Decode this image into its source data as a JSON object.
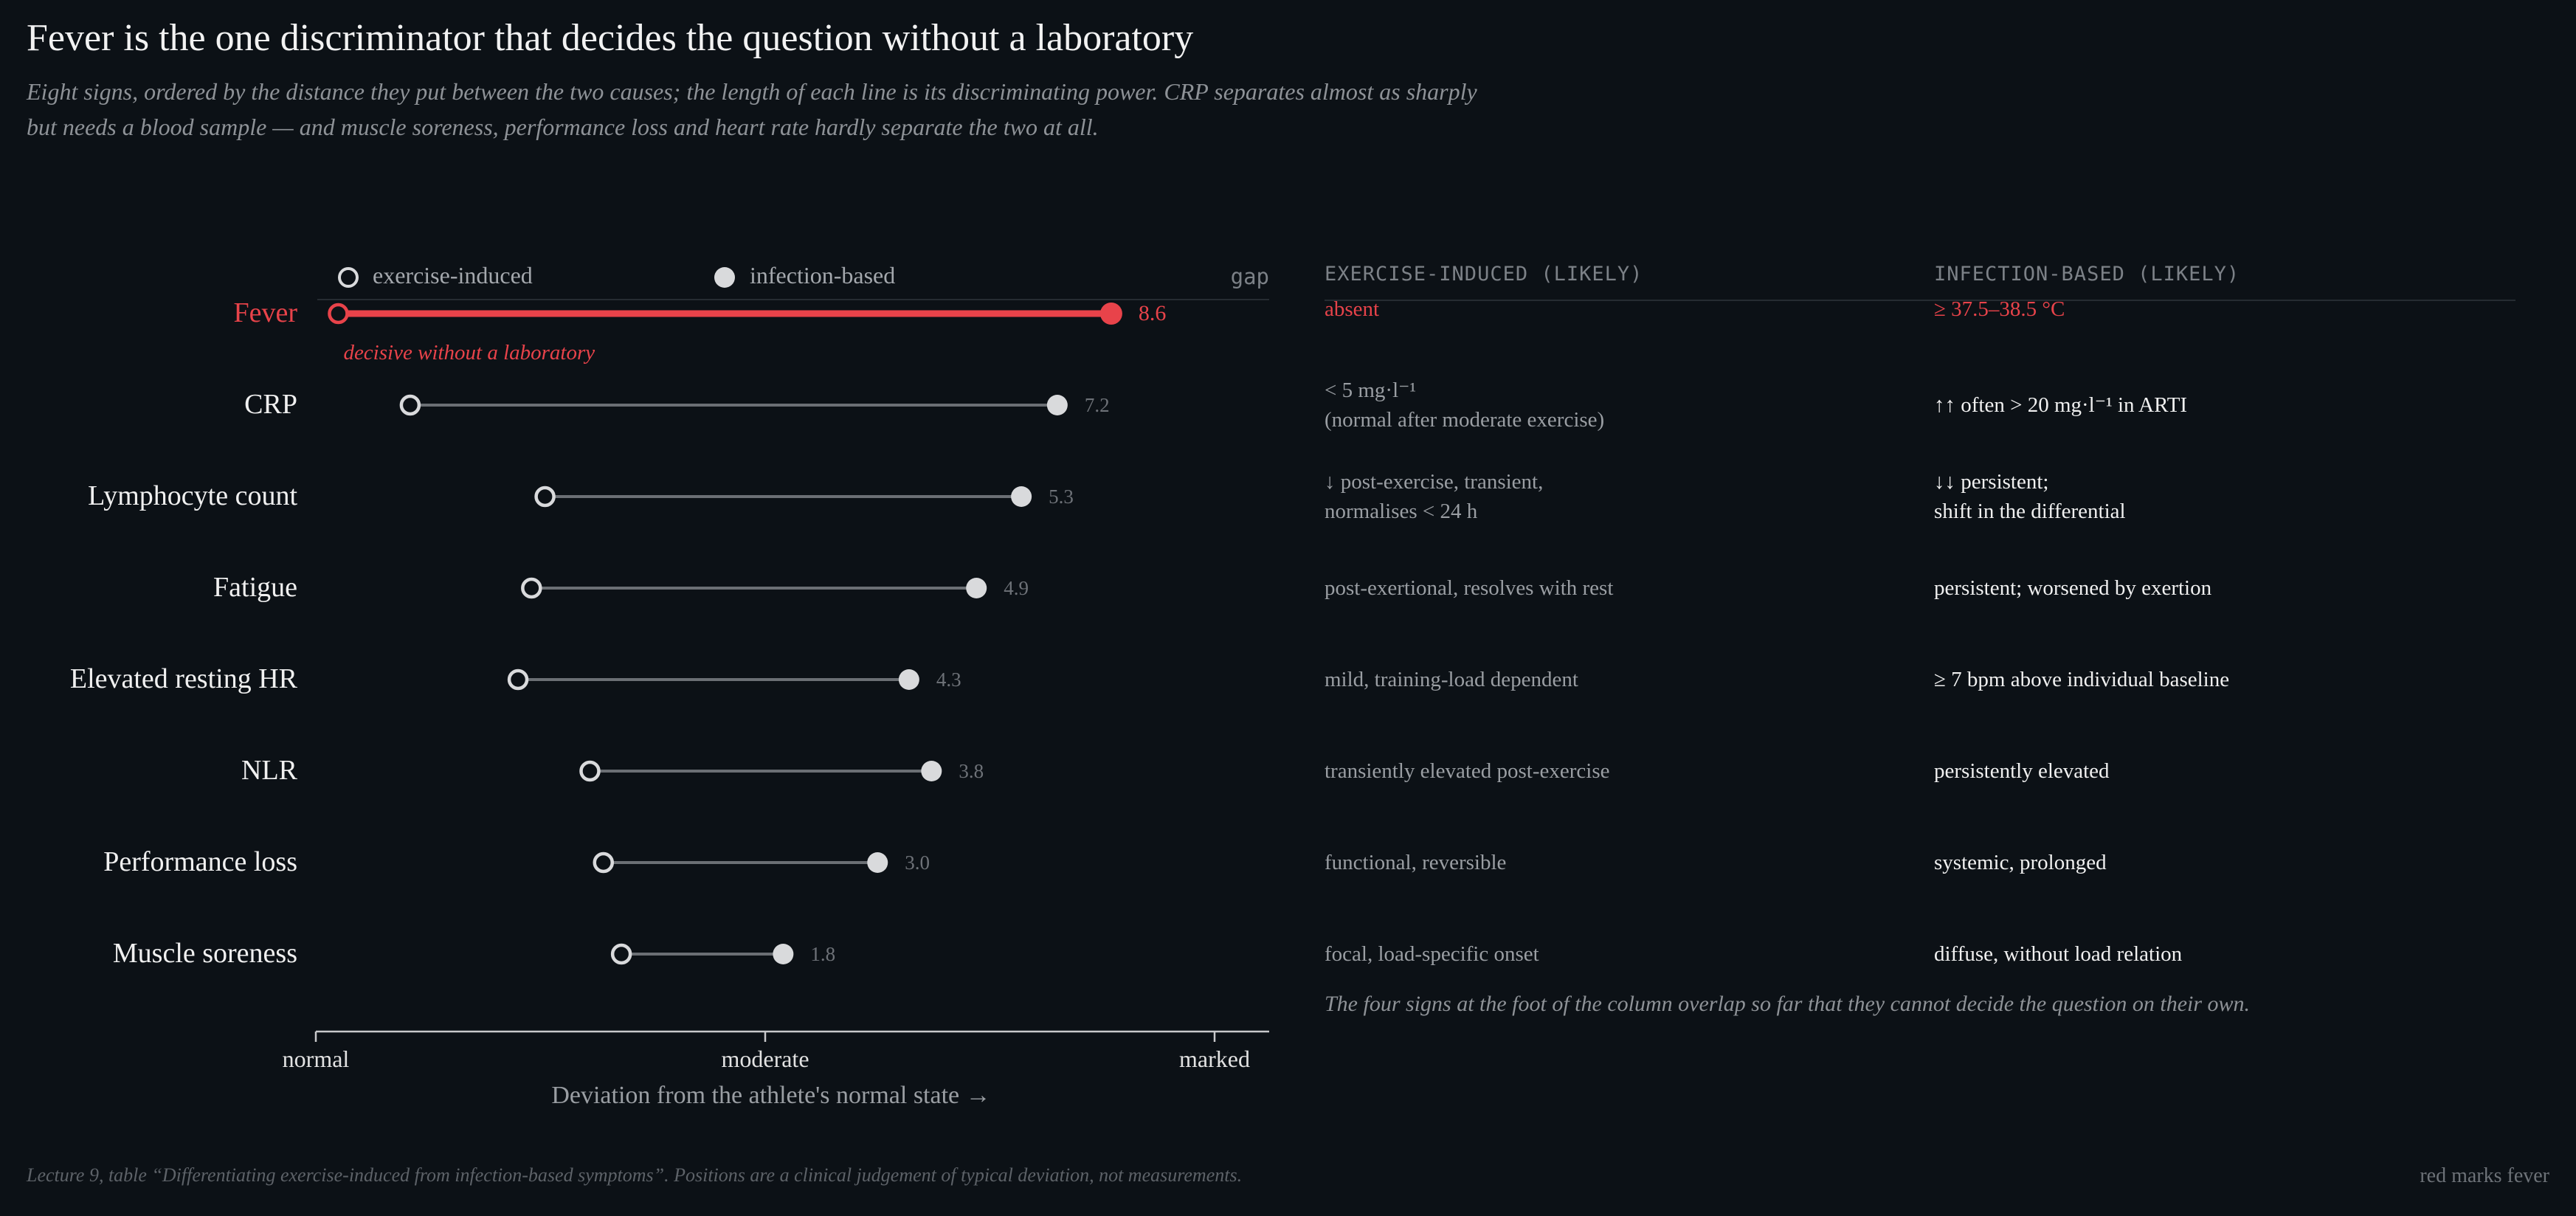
{
  "header": {
    "title": "Fever is the one discriminator that decides the question without a laboratory",
    "subtitle_line1": "Eight signs, ordered by the distance they put between the two causes; the length of each line is its discriminating power. CRP separates almost as sharply",
    "subtitle_line2": "but needs a blood sample — and muscle soreness, performance loss and heart rate hardly separate the two at all."
  },
  "legend": {
    "exercise": "exercise-induced",
    "infection": "infection-based",
    "gap_label": "gap"
  },
  "table": {
    "col_exercise": "EXERCISE-INDUCED (LIKELY)",
    "col_infection": "INFECTION-BASED (LIKELY)",
    "rows": [
      {
        "exercise": [
          "absent"
        ],
        "infection": [
          "≥ 37.5–38.5 °C"
        ],
        "highlight": true
      },
      {
        "exercise": [
          "< 5 mg·l⁻¹",
          "(normal after moderate exercise)"
        ],
        "infection": [
          "↑↑ often > 20 mg·l⁻¹ in ARTI"
        ]
      },
      {
        "exercise": [
          "↓ post-exercise, transient,",
          "normalises < 24 h"
        ],
        "infection": [
          "↓↓ persistent;",
          "shift in the differential"
        ]
      },
      {
        "exercise": [
          "post-exertional, resolves with rest"
        ],
        "infection": [
          "persistent; worsened by exertion"
        ]
      },
      {
        "exercise": [
          "mild, training-load dependent"
        ],
        "infection": [
          "≥ 7 bpm above individual baseline"
        ]
      },
      {
        "exercise": [
          "transiently elevated post-exercise"
        ],
        "infection": [
          "persistently elevated"
        ]
      },
      {
        "exercise": [
          "functional, reversible"
        ],
        "infection": [
          "systemic, prolonged"
        ]
      },
      {
        "exercise": [
          "focal, load-specific onset"
        ],
        "infection": [
          "diffuse, without load relation"
        ]
      }
    ],
    "note": "The four signs at the foot of the column overlap so far that they cannot decide the question on their own."
  },
  "footer": {
    "source": "Lecture 9, table “Differentiating exercise-induced from infection-based symptoms”. Positions are a clinical judgement of typical deviation, not measurements.",
    "corner": "red marks fever"
  },
  "colors": {
    "background": "#0c1116",
    "highlight": "#e8434a",
    "neutral_line": "#6b6f74",
    "dot_fill": "#d9dadc",
    "muted_text": "#7c8187"
  },
  "chart_data": {
    "type": "dumbbell",
    "title": "Fever is the one discriminator that decides the question without a laboratory",
    "xlabel": "Deviation from the athlete's normal state →",
    "x_ticks": [
      {
        "value": 0,
        "label": "normal"
      },
      {
        "value": 5,
        "label": "moderate"
      },
      {
        "value": 10,
        "label": "marked"
      }
    ],
    "xlim": [
      0,
      10.6
    ],
    "series": [
      {
        "name": "exercise-induced",
        "marker": "open circle"
      },
      {
        "name": "infection-based",
        "marker": "filled circle"
      }
    ],
    "rows": [
      {
        "label": "Fever",
        "exercise": 0.25,
        "infection": 8.85,
        "gap": "8.6",
        "highlight": true,
        "annotation": "decisive without a laboratory"
      },
      {
        "label": "CRP",
        "exercise": 1.05,
        "infection": 8.25,
        "gap": "7.2"
      },
      {
        "label": "Lymphocyte count",
        "exercise": 2.55,
        "infection": 7.85,
        "gap": "5.3"
      },
      {
        "label": "Fatigue",
        "exercise": 2.4,
        "infection": 7.35,
        "gap": "4.9"
      },
      {
        "label": "Elevated resting HR",
        "exercise": 2.25,
        "infection": 6.6,
        "gap": "4.3"
      },
      {
        "label": "NLR",
        "exercise": 3.05,
        "infection": 6.85,
        "gap": "3.8"
      },
      {
        "label": "Performance loss",
        "exercise": 3.2,
        "infection": 6.25,
        "gap": "3.0"
      },
      {
        "label": "Muscle soreness",
        "exercise": 3.4,
        "infection": 5.2,
        "gap": "1.8"
      }
    ]
  }
}
